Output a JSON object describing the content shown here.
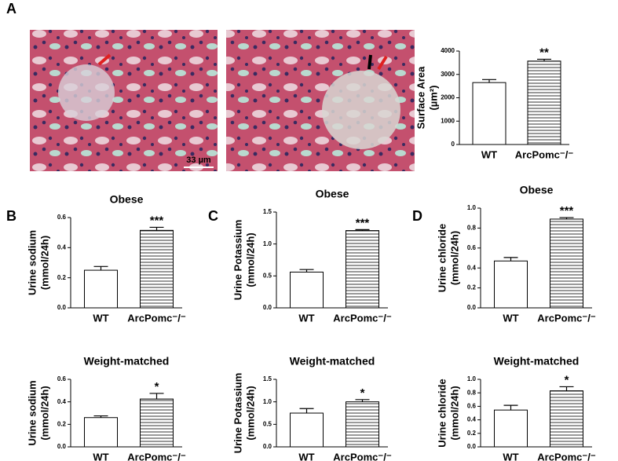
{
  "figure": {
    "panels": [
      "A",
      "B",
      "C",
      "D"
    ],
    "scale_bar": "33 µm"
  },
  "chart_data": [
    {
      "type": "bar",
      "ylabel": [
        "Surface  Area",
        "(µm²)"
      ],
      "categories": [
        "WT",
        "ArcPomc⁻/⁻"
      ],
      "values": [
        2650,
        3570
      ],
      "errors": [
        130,
        80
      ],
      "hatch": [
        false,
        true
      ],
      "color": "#ffffff",
      "ylim": [
        0,
        4000
      ],
      "yticks": [
        0,
        1000,
        2000,
        3000,
        4000
      ],
      "annotations": [
        {
          "category": "ArcPomc⁻/⁻",
          "text": "**"
        }
      ]
    },
    {
      "type": "bar",
      "title": "Obese",
      "ylabel": [
        "Urine sodium",
        "(mmol/24h)"
      ],
      "categories": [
        "WT",
        "ArcPomc⁻/⁻"
      ],
      "values": [
        0.25,
        0.515
      ],
      "errors": [
        0.025,
        0.02
      ],
      "hatch": [
        false,
        true
      ],
      "color": "#ffffff",
      "ylim": [
        0,
        0.6
      ],
      "yticks": [
        {
          "value": 0,
          "label": "0.0"
        },
        0.2,
        0.4,
        0.6
      ],
      "annotations": [
        {
          "category": "ArcPomc⁻/⁻",
          "text": "***"
        }
      ]
    },
    {
      "type": "bar",
      "title": "Weight-matched",
      "ylabel": [
        "Urine sodium",
        "(mmol/24h)"
      ],
      "categories": [
        "WT",
        "ArcPomc⁻/⁻"
      ],
      "values": [
        0.26,
        0.425
      ],
      "errors": [
        0.015,
        0.05
      ],
      "hatch": [
        false,
        true
      ],
      "color": "#ffffff",
      "ylim": [
        0,
        0.6
      ],
      "yticks": [
        {
          "value": 0,
          "label": "0.0"
        },
        0.2,
        0.4,
        0.6
      ],
      "annotations": [
        {
          "category": "ArcPomc⁻/⁻",
          "text": "*"
        }
      ]
    },
    {
      "type": "bar",
      "title": "Obese",
      "ylabel": [
        "Urine Potassium",
        "(mmol/24h)"
      ],
      "categories": [
        "WT",
        "ArcPomc⁻/⁻"
      ],
      "values": [
        0.56,
        1.21
      ],
      "errors": [
        0.04,
        0.015
      ],
      "hatch": [
        false,
        true
      ],
      "color": "#ffffff",
      "ylim": [
        0,
        1.5
      ],
      "yticks": [
        {
          "value": 0,
          "label": "0.0"
        },
        0.5,
        {
          "value": 1,
          "label": "1.0"
        },
        1.5
      ],
      "annotations": [
        {
          "category": "ArcPomc⁻/⁻",
          "text": "***"
        }
      ]
    },
    {
      "type": "bar",
      "title": "Weight-matched",
      "ylabel": [
        "Urine Potassium",
        "(mmol/24h)"
      ],
      "categories": [
        "WT",
        "ArcPomc⁻/⁻"
      ],
      "values": [
        0.75,
        1.0
      ],
      "errors": [
        0.1,
        0.05
      ],
      "hatch": [
        false,
        true
      ],
      "color": "#ffffff",
      "ylim": [
        0,
        1.5
      ],
      "yticks": [
        {
          "value": 0,
          "label": "0.0"
        },
        0.5,
        {
          "value": 1,
          "label": "1.0"
        },
        1.5
      ],
      "annotations": [
        {
          "category": "ArcPomc⁻/⁻",
          "text": "*"
        }
      ]
    },
    {
      "type": "bar",
      "title": "Obese",
      "ylabel": [
        "Urine chloride",
        "(mmol/24h)"
      ],
      "categories": [
        "WT",
        "ArcPomc⁻/⁻"
      ],
      "values": [
        0.47,
        0.89
      ],
      "errors": [
        0.035,
        0.015
      ],
      "hatch": [
        false,
        true
      ],
      "color": "#ffffff",
      "ylim": [
        0,
        1
      ],
      "yticks": [
        {
          "value": 0,
          "label": "0.0"
        },
        0.2,
        0.4,
        0.6,
        0.8,
        {
          "value": 1,
          "label": "1.0"
        }
      ],
      "annotations": [
        {
          "category": "ArcPomc⁻/⁻",
          "text": "***"
        }
      ]
    },
    {
      "type": "bar",
      "title": "Weight-matched",
      "ylabel": [
        "Urine chloride",
        "(mmol/24h)"
      ],
      "categories": [
        "WT",
        "ArcPomc⁻/⁻"
      ],
      "values": [
        0.545,
        0.83
      ],
      "errors": [
        0.07,
        0.06
      ],
      "hatch": [
        false,
        true
      ],
      "color": "#ffffff",
      "ylim": [
        0,
        1
      ],
      "yticks": [
        {
          "value": 0,
          "label": "0.0"
        },
        0.2,
        0.4,
        0.6,
        0.8,
        {
          "value": 1,
          "label": "1.0"
        }
      ],
      "annotations": [
        {
          "category": "ArcPomc⁻/⁻",
          "text": "*"
        }
      ]
    }
  ]
}
